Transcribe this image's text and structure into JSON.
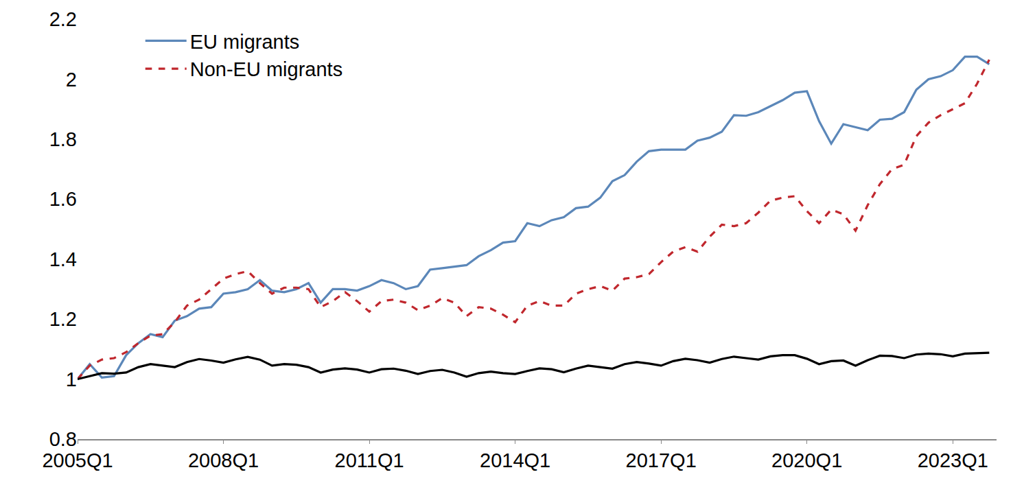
{
  "chart_data": {
    "type": "line",
    "categories": [
      "2005Q1",
      null,
      null,
      null,
      null,
      null,
      null,
      null,
      null,
      null,
      null,
      null,
      "2008Q1",
      null,
      null,
      null,
      null,
      null,
      null,
      null,
      null,
      null,
      null,
      null,
      "2011Q1",
      null,
      null,
      null,
      null,
      null,
      null,
      null,
      null,
      null,
      null,
      null,
      "2014Q1",
      null,
      null,
      null,
      null,
      null,
      null,
      null,
      null,
      null,
      null,
      null,
      "2017Q1",
      null,
      null,
      null,
      null,
      null,
      null,
      null,
      null,
      null,
      null,
      null,
      "2020Q1",
      null,
      null,
      null,
      null,
      null,
      null,
      null,
      null,
      null,
      null,
      null,
      "2023Q1",
      null,
      null,
      null
    ],
    "series": [
      {
        "name": "EU migrants",
        "color": "#5b87b9",
        "line_style": "solid",
        "values": [
          1.0,
          1.05,
          1.005,
          1.01,
          1.08,
          1.12,
          1.15,
          1.14,
          1.195,
          1.21,
          1.235,
          1.24,
          1.285,
          1.29,
          1.3,
          1.33,
          1.295,
          1.29,
          1.3,
          1.32,
          1.255,
          1.3,
          1.3,
          1.295,
          1.31,
          1.33,
          1.32,
          1.3,
          1.31,
          1.365,
          1.37,
          1.375,
          1.38,
          1.41,
          1.43,
          1.455,
          1.46,
          1.52,
          1.51,
          1.53,
          1.54,
          1.57,
          1.575,
          1.605,
          1.66,
          1.68,
          1.725,
          1.76,
          1.765,
          1.765,
          1.765,
          1.795,
          1.805,
          1.825,
          1.88,
          1.878,
          1.89,
          1.91,
          1.93,
          1.955,
          1.96,
          1.86,
          1.785,
          1.85,
          1.84,
          1.83,
          1.865,
          1.868,
          1.89,
          1.965,
          2.0,
          2.01,
          2.03,
          2.075,
          2.075,
          2.05
        ]
      },
      {
        "name": "Non-EU migrants",
        "color": "#c0272d",
        "line_style": "dashed",
        "values": [
          1.0,
          1.045,
          1.065,
          1.07,
          1.09,
          1.12,
          1.145,
          1.15,
          1.19,
          1.245,
          1.265,
          1.3,
          1.335,
          1.35,
          1.36,
          1.32,
          1.285,
          1.305,
          1.305,
          1.3,
          1.24,
          1.26,
          1.29,
          1.26,
          1.225,
          1.26,
          1.265,
          1.255,
          1.23,
          1.245,
          1.27,
          1.255,
          1.21,
          1.24,
          1.235,
          1.215,
          1.19,
          1.245,
          1.26,
          1.245,
          1.245,
          1.285,
          1.3,
          1.31,
          1.295,
          1.335,
          1.34,
          1.35,
          1.39,
          1.425,
          1.44,
          1.425,
          1.475,
          1.515,
          1.51,
          1.52,
          1.555,
          1.595,
          1.605,
          1.61,
          1.56,
          1.52,
          1.565,
          1.55,
          1.495,
          1.58,
          1.65,
          1.7,
          1.715,
          1.81,
          1.855,
          1.88,
          1.9,
          1.92,
          1.985,
          2.065
        ]
      },
      {
        "color": "#000000",
        "line_style": "solid",
        "values": [
          1.0,
          1.01,
          1.02,
          1.018,
          1.022,
          1.04,
          1.05,
          1.045,
          1.04,
          1.057,
          1.067,
          1.062,
          1.055,
          1.066,
          1.074,
          1.065,
          1.045,
          1.05,
          1.048,
          1.04,
          1.022,
          1.032,
          1.036,
          1.032,
          1.022,
          1.033,
          1.035,
          1.028,
          1.017,
          1.027,
          1.031,
          1.022,
          1.008,
          1.02,
          1.025,
          1.02,
          1.017,
          1.027,
          1.036,
          1.033,
          1.023,
          1.035,
          1.045,
          1.04,
          1.035,
          1.05,
          1.057,
          1.052,
          1.045,
          1.06,
          1.068,
          1.063,
          1.055,
          1.067,
          1.075,
          1.07,
          1.065,
          1.076,
          1.08,
          1.08,
          1.068,
          1.05,
          1.06,
          1.062,
          1.045,
          1.063,
          1.078,
          1.077,
          1.07,
          1.082,
          1.085,
          1.083,
          1.076,
          1.085,
          1.087,
          1.088
        ]
      }
    ],
    "ylim": [
      0.8,
      2.2
    ],
    "yticks": [
      0.8,
      1,
      1.2,
      1.4,
      1.6,
      1.8,
      2,
      2.2
    ],
    "grid": false,
    "legend": "upper left"
  }
}
